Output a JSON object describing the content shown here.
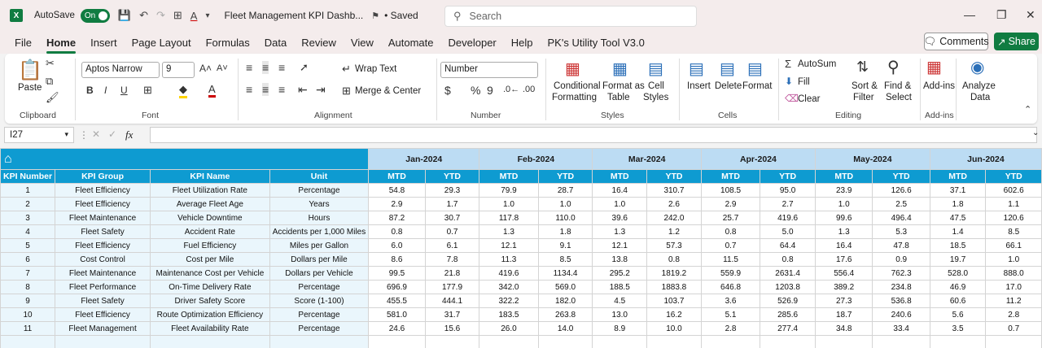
{
  "titlebar": {
    "logo": "X",
    "autosave_label": "AutoSave",
    "toggle_label": "On",
    "doc_title": "Fleet Management KPI Dashb...",
    "saved_label": "• Saved",
    "search_placeholder": "Search"
  },
  "menu": [
    "File",
    "Home",
    "Insert",
    "Page Layout",
    "Formulas",
    "Data",
    "Review",
    "View",
    "Automate",
    "Developer",
    "Help",
    "PK's Utility Tool V3.0"
  ],
  "comments_label": "Comments",
  "share_label": "Share",
  "ribbon": {
    "clipboard": {
      "paste": "Paste",
      "group": "Clipboard"
    },
    "font": {
      "name": "Aptos Narrow",
      "size": "9",
      "group": "Font"
    },
    "alignment": {
      "wrap": "Wrap Text",
      "merge": "Merge & Center",
      "group": "Alignment"
    },
    "number": {
      "format": "Number",
      "group": "Number"
    },
    "styles": {
      "conditional": "Conditional",
      "formatting": "Formatting",
      "format_as": "Format as",
      "table": "Table",
      "cell": "Cell",
      "styles": "Styles",
      "group": "Styles"
    },
    "cells": {
      "insert": "Insert",
      "delete": "Delete",
      "format": "Format",
      "group": "Cells"
    },
    "editing": {
      "autosum": "AutoSum",
      "fill": "Fill",
      "clear": "Clear",
      "sort": "Sort &",
      "filter": "Filter",
      "find": "Find &",
      "select": "Select",
      "group": "Editing"
    },
    "addins": {
      "label": "Add-ins",
      "group": "Add-ins"
    },
    "analyze": {
      "line1": "Analyze",
      "line2": "Data"
    }
  },
  "formula_bar": {
    "cell_ref": "I27",
    "fx": "fx",
    "value": ""
  },
  "table": {
    "months": [
      "Jan-2024",
      "Feb-2024",
      "Mar-2024",
      "Apr-2024",
      "May-2024",
      "Jun-2024"
    ],
    "headers": [
      "KPI Number",
      "KPI Group",
      "KPI Name",
      "Unit"
    ],
    "mtd": "MTD",
    "ytd": "YTD",
    "rows": [
      {
        "n": "1",
        "group": "Fleet Efficiency",
        "name": "Fleet Utilization Rate",
        "unit": "Percentage",
        "v": [
          "54.8",
          "29.3",
          "79.9",
          "28.7",
          "16.4",
          "310.7",
          "108.5",
          "95.0",
          "23.9",
          "126.6",
          "37.1",
          "602.6"
        ]
      },
      {
        "n": "2",
        "group": "Fleet Efficiency",
        "name": "Average Fleet Age",
        "unit": "Years",
        "v": [
          "2.9",
          "1.7",
          "1.0",
          "1.0",
          "1.0",
          "2.6",
          "2.9",
          "2.7",
          "1.0",
          "2.5",
          "1.8",
          "1.1"
        ]
      },
      {
        "n": "3",
        "group": "Fleet Maintenance",
        "name": "Vehicle Downtime",
        "unit": "Hours",
        "v": [
          "87.2",
          "30.7",
          "117.8",
          "110.0",
          "39.6",
          "242.0",
          "25.7",
          "419.6",
          "99.6",
          "496.4",
          "47.5",
          "120.6"
        ]
      },
      {
        "n": "4",
        "group": "Fleet Safety",
        "name": "Accident Rate",
        "unit": "Accidents per 1,000 Miles",
        "v": [
          "0.8",
          "0.7",
          "1.3",
          "1.8",
          "1.3",
          "1.2",
          "0.8",
          "5.0",
          "1.3",
          "5.3",
          "1.4",
          "8.5"
        ]
      },
      {
        "n": "5",
        "group": "Fleet Efficiency",
        "name": "Fuel Efficiency",
        "unit": "Miles per Gallon",
        "v": [
          "6.0",
          "6.1",
          "12.1",
          "9.1",
          "12.1",
          "57.3",
          "0.7",
          "64.4",
          "16.4",
          "47.8",
          "18.5",
          "66.1"
        ]
      },
      {
        "n": "6",
        "group": "Cost Control",
        "name": "Cost per Mile",
        "unit": "Dollars per Mile",
        "v": [
          "8.6",
          "7.8",
          "11.3",
          "8.5",
          "13.8",
          "0.8",
          "11.5",
          "0.8",
          "17.6",
          "0.9",
          "19.7",
          "1.0"
        ]
      },
      {
        "n": "7",
        "group": "Fleet Maintenance",
        "name": "Maintenance Cost per Vehicle",
        "unit": "Dollars per Vehicle",
        "v": [
          "99.5",
          "21.8",
          "419.6",
          "1134.4",
          "295.2",
          "1819.2",
          "559.9",
          "2631.4",
          "556.4",
          "762.3",
          "528.0",
          "888.0"
        ]
      },
      {
        "n": "8",
        "group": "Fleet Performance",
        "name": "On-Time Delivery Rate",
        "unit": "Percentage",
        "v": [
          "696.9",
          "177.9",
          "342.0",
          "569.0",
          "188.5",
          "1883.8",
          "646.8",
          "1203.8",
          "389.2",
          "234.8",
          "46.9",
          "17.0"
        ]
      },
      {
        "n": "9",
        "group": "Fleet Safety",
        "name": "Driver Safety Score",
        "unit": "Score (1-100)",
        "v": [
          "455.5",
          "444.1",
          "322.2",
          "182.0",
          "4.5",
          "103.7",
          "3.6",
          "526.9",
          "27.3",
          "536.8",
          "60.6",
          "11.2"
        ]
      },
      {
        "n": "10",
        "group": "Fleet Efficiency",
        "name": "Route Optimization Efficiency",
        "unit": "Percentage",
        "v": [
          "581.0",
          "31.7",
          "183.5",
          "263.8",
          "13.0",
          "16.2",
          "5.1",
          "285.6",
          "18.7",
          "240.6",
          "5.6",
          "2.8"
        ]
      },
      {
        "n": "11",
        "group": "Fleet Management",
        "name": "Fleet Availability Rate",
        "unit": "Percentage",
        "v": [
          "24.6",
          "15.6",
          "26.0",
          "14.0",
          "8.9",
          "10.0",
          "2.8",
          "277.4",
          "34.8",
          "33.4",
          "3.5",
          "0.7"
        ]
      }
    ]
  }
}
